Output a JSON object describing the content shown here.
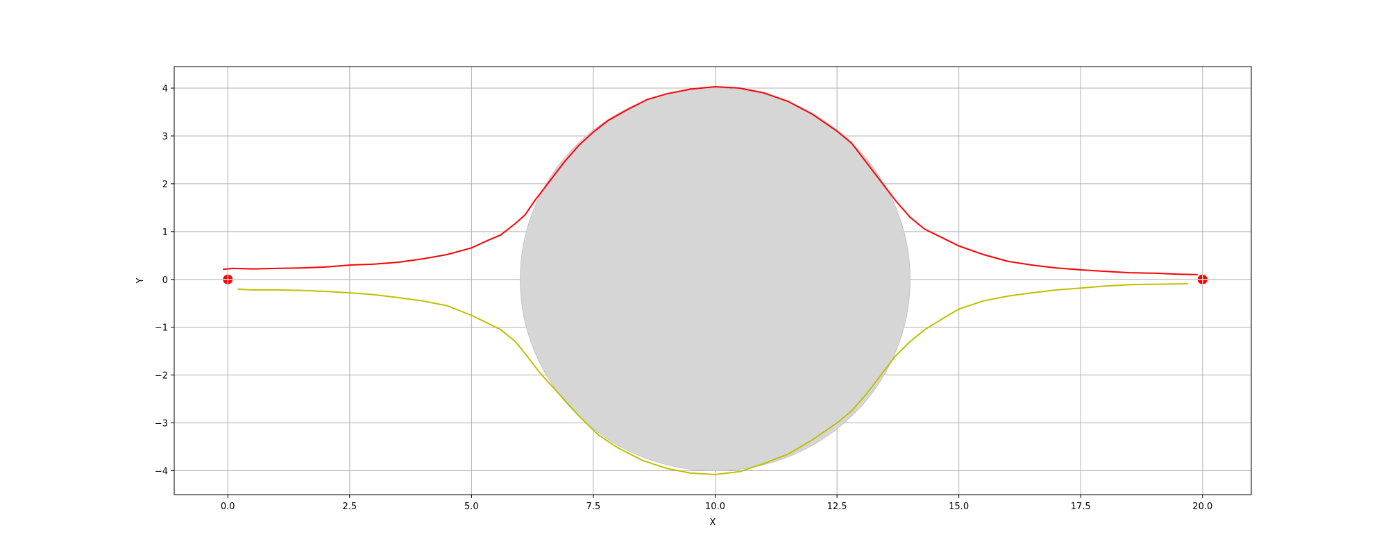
{
  "chart_data": {
    "type": "line",
    "title": "",
    "xlabel": "X",
    "ylabel": "Y",
    "xlim": [
      -1.1,
      21.0
    ],
    "ylim": [
      -4.5,
      4.45
    ],
    "grid": true,
    "x_ticks": [
      0.0,
      2.5,
      5.0,
      7.5,
      10.0,
      12.5,
      15.0,
      17.5,
      20.0
    ],
    "x_tick_labels": [
      "0.0",
      "2.5",
      "5.0",
      "7.5",
      "10.0",
      "12.5",
      "15.0",
      "17.5",
      "20.0"
    ],
    "y_ticks": [
      4,
      3,
      2,
      1,
      0,
      -1,
      -2,
      -3,
      -4
    ],
    "y_tick_labels": [
      "4",
      "3",
      "2",
      "1",
      "0",
      "−1",
      "−2",
      "−3",
      "−4"
    ],
    "obstacle": {
      "center": [
        10.0,
        0.0
      ],
      "radius": 4.0,
      "color": "#d6d6d6"
    },
    "endpoints": [
      {
        "x": 0.0,
        "y": 0.0,
        "color": "#ff0000"
      },
      {
        "x": 20.0,
        "y": 0.0,
        "color": "#ff0000"
      }
    ],
    "series": [
      {
        "color": "#ff0000",
        "points": [
          [
            -0.1,
            0.21
          ],
          [
            0.1,
            0.23
          ],
          [
            0.5,
            0.22
          ],
          [
            1.0,
            0.23
          ],
          [
            1.5,
            0.24
          ],
          [
            2.0,
            0.26
          ],
          [
            2.5,
            0.3
          ],
          [
            3.0,
            0.32
          ],
          [
            3.5,
            0.36
          ],
          [
            4.0,
            0.43
          ],
          [
            4.5,
            0.52
          ],
          [
            5.0,
            0.66
          ],
          [
            5.3,
            0.8
          ],
          [
            5.6,
            0.93
          ],
          [
            5.9,
            1.17
          ],
          [
            6.1,
            1.35
          ],
          [
            6.3,
            1.65
          ],
          [
            6.6,
            2.05
          ],
          [
            6.9,
            2.45
          ],
          [
            7.2,
            2.8
          ],
          [
            7.5,
            3.08
          ],
          [
            7.8,
            3.32
          ],
          [
            8.2,
            3.55
          ],
          [
            8.6,
            3.76
          ],
          [
            9.0,
            3.88
          ],
          [
            9.5,
            3.98
          ],
          [
            10.0,
            4.03
          ],
          [
            10.5,
            4.0
          ],
          [
            11.0,
            3.9
          ],
          [
            11.5,
            3.72
          ],
          [
            12.0,
            3.45
          ],
          [
            12.5,
            3.1
          ],
          [
            12.8,
            2.85
          ],
          [
            13.1,
            2.45
          ],
          [
            13.4,
            2.05
          ],
          [
            13.7,
            1.65
          ],
          [
            14.0,
            1.3
          ],
          [
            14.3,
            1.05
          ],
          [
            14.7,
            0.85
          ],
          [
            15.0,
            0.7
          ],
          [
            15.5,
            0.52
          ],
          [
            16.0,
            0.38
          ],
          [
            16.5,
            0.3
          ],
          [
            17.0,
            0.24
          ],
          [
            17.5,
            0.2
          ],
          [
            18.0,
            0.17
          ],
          [
            18.5,
            0.14
          ],
          [
            19.0,
            0.13
          ],
          [
            19.5,
            0.11
          ],
          [
            19.9,
            0.1
          ]
        ]
      },
      {
        "color": "#bfbf00",
        "points": [
          [
            0.2,
            -0.2
          ],
          [
            0.5,
            -0.22
          ],
          [
            1.0,
            -0.22
          ],
          [
            1.5,
            -0.23
          ],
          [
            2.0,
            -0.25
          ],
          [
            2.5,
            -0.28
          ],
          [
            3.0,
            -0.32
          ],
          [
            3.5,
            -0.38
          ],
          [
            4.0,
            -0.45
          ],
          [
            4.5,
            -0.55
          ],
          [
            5.0,
            -0.75
          ],
          [
            5.3,
            -0.9
          ],
          [
            5.6,
            -1.05
          ],
          [
            5.9,
            -1.3
          ],
          [
            6.1,
            -1.55
          ],
          [
            6.4,
            -1.95
          ],
          [
            6.8,
            -2.4
          ],
          [
            7.2,
            -2.85
          ],
          [
            7.6,
            -3.25
          ],
          [
            8.0,
            -3.52
          ],
          [
            8.5,
            -3.78
          ],
          [
            9.0,
            -3.95
          ],
          [
            9.5,
            -4.05
          ],
          [
            10.0,
            -4.08
          ],
          [
            10.5,
            -4.02
          ],
          [
            11.0,
            -3.85
          ],
          [
            11.5,
            -3.65
          ],
          [
            12.0,
            -3.35
          ],
          [
            12.5,
            -3.0
          ],
          [
            12.8,
            -2.75
          ],
          [
            13.1,
            -2.4
          ],
          [
            13.4,
            -2.0
          ],
          [
            13.7,
            -1.6
          ],
          [
            14.0,
            -1.3
          ],
          [
            14.3,
            -1.05
          ],
          [
            14.7,
            -0.8
          ],
          [
            15.0,
            -0.62
          ],
          [
            15.5,
            -0.45
          ],
          [
            16.0,
            -0.35
          ],
          [
            16.5,
            -0.28
          ],
          [
            17.0,
            -0.22
          ],
          [
            17.5,
            -0.18
          ],
          [
            18.0,
            -0.14
          ],
          [
            18.5,
            -0.11
          ],
          [
            19.0,
            -0.1
          ],
          [
            19.7,
            -0.09
          ]
        ]
      }
    ]
  }
}
